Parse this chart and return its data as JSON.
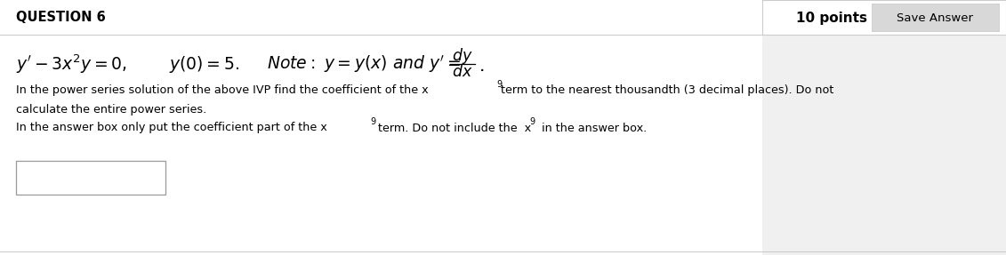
{
  "title": "QUESTION 6",
  "points_text": "10 points",
  "save_answer_text": "Save Answer",
  "bg_color": "#f0f0f0",
  "white": "#ffffff",
  "save_btn_bg": "#d8d8d8",
  "border_color": "#cccccc",
  "text_color": "#000000",
  "font_size_title": 10.5,
  "font_size_body": 9.2,
  "font_size_eq": 13.5
}
